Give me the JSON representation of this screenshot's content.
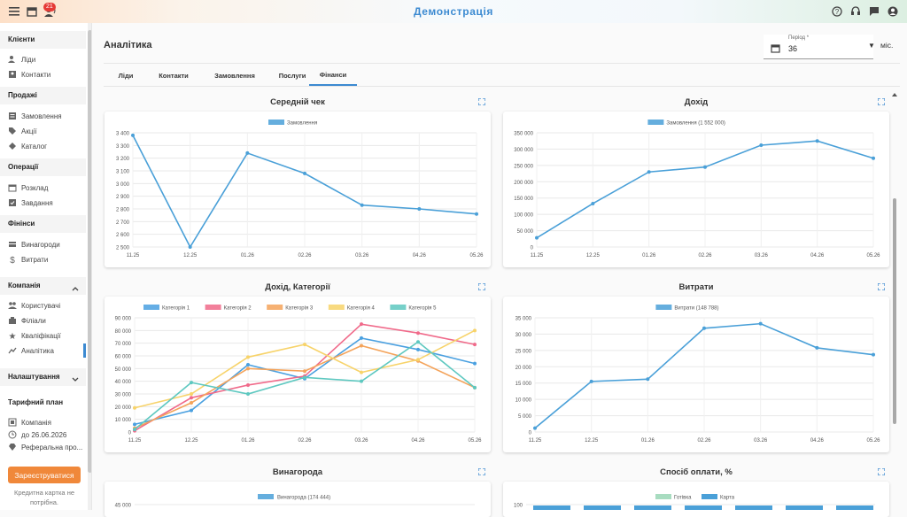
{
  "app": {
    "brand": "Демонстрація",
    "notifications_badge": "21"
  },
  "sidebar": {
    "sections": [
      {
        "title": "Клієнти",
        "items": [
          "Ліди",
          "Контакти"
        ]
      },
      {
        "title": "Продажі",
        "items": [
          "Замовлення",
          "Акції",
          "Каталог"
        ]
      },
      {
        "title": "Операції",
        "items": [
          "Розклад",
          "Завдання"
        ]
      },
      {
        "title": "Фінінси",
        "items": [
          "Винагороди",
          "Витрати"
        ]
      },
      {
        "title": "Компанія",
        "items": [
          "Користувачі",
          "Філіали",
          "Кваліфікації",
          "Аналітика"
        ]
      },
      {
        "title": "Налаштування",
        "items": []
      },
      {
        "title": "Тарифний план",
        "items": [
          "Компанія",
          "до 26.06.2026",
          "Реферальна про..."
        ]
      }
    ],
    "register_button": "Зареєструватися",
    "note": "Кредитна картка не потрібна."
  },
  "main": {
    "title": "Аналітика",
    "period": {
      "label": "Період *",
      "value": "36",
      "unit": "міс."
    },
    "tabs": [
      "Ліди",
      "Контакти",
      "Замовлення",
      "Послуги",
      "Фінанси"
    ],
    "active_tab": "Фінанси"
  },
  "panels": {
    "avg_check": "Середній чек",
    "income": "Дохід",
    "income_cat": "Дохід, Категорії",
    "expenses": "Витрати",
    "rewards": "Винагорода",
    "payment": "Спосіб оплати, %"
  },
  "chart_data": [
    {
      "type": "line",
      "title": "Середній чек",
      "x": [
        "11.25",
        "12.25",
        "01.26",
        "02.26",
        "03.26",
        "04.26",
        "05.26"
      ],
      "series": [
        {
          "name": "Замовлення",
          "values": [
            3380,
            2500,
            3240,
            3080,
            2830,
            2800,
            2760
          ]
        }
      ],
      "ylim": [
        2500,
        3400
      ],
      "yticks": [
        "2 500",
        "2 600",
        "2 700",
        "2 800",
        "2 900",
        "3 000",
        "3 100",
        "3 200",
        "3 300",
        "3 400"
      ],
      "color": "#4aa0d8"
    },
    {
      "type": "line",
      "title": "Дохід",
      "x": [
        "11.25",
        "12.25",
        "01.26",
        "02.26",
        "03.26",
        "04.26",
        "05.26"
      ],
      "series": [
        {
          "name": "Замовлення (1 552 000)",
          "values": [
            28000,
            133000,
            230000,
            245000,
            312000,
            325000,
            272000
          ]
        }
      ],
      "ylim": [
        0,
        350000
      ],
      "yticks": [
        "0",
        "50 000",
        "100 000",
        "150 000",
        "200 000",
        "250 000",
        "300 000",
        "350 000"
      ],
      "color": "#4aa0d8"
    },
    {
      "type": "line",
      "title": "Дохід, Категорії",
      "x": [
        "11.25",
        "12.25",
        "01.26",
        "02.26",
        "03.26",
        "04.26",
        "05.26"
      ],
      "series": [
        {
          "name": "Категорія 1",
          "values": [
            6000,
            17000,
            53000,
            42000,
            74000,
            65000,
            54000
          ],
          "color": "#4aa0e0"
        },
        {
          "name": "Категорія 2",
          "values": [
            1000,
            27000,
            37000,
            44000,
            85000,
            78000,
            69000
          ],
          "color": "#f06a8a"
        },
        {
          "name": "Категорія 3",
          "values": [
            3000,
            23000,
            50000,
            48000,
            68000,
            56000,
            35000
          ],
          "color": "#f4a35a"
        },
        {
          "name": "Категорія 4",
          "values": [
            19000,
            30000,
            59000,
            69000,
            47000,
            57000,
            80000
          ],
          "color": "#f7d36a"
        },
        {
          "name": "Категорія 5",
          "values": [
            2000,
            39000,
            30000,
            43000,
            40000,
            71000,
            35000
          ],
          "color": "#5ec8c0"
        }
      ],
      "ylim": [
        0,
        90000
      ],
      "yticks": [
        "0",
        "10 000",
        "20 000",
        "30 000",
        "40 000",
        "50 000",
        "60 000",
        "70 000",
        "80 000",
        "90 000"
      ]
    },
    {
      "type": "line",
      "title": "Витрати",
      "x": [
        "11.25",
        "12.25",
        "01.26",
        "02.26",
        "03.26",
        "04.26",
        "05.26"
      ],
      "series": [
        {
          "name": "Витрати (148 788)",
          "values": [
            1200,
            15500,
            16200,
            31800,
            33200,
            25800,
            23700
          ]
        }
      ],
      "ylim": [
        0,
        35000
      ],
      "yticks": [
        "0",
        "5 000",
        "10 000",
        "15 000",
        "20 000",
        "25 000",
        "30 000",
        "35 000"
      ],
      "color": "#4aa0d8"
    },
    {
      "type": "line",
      "title": "Винагорода",
      "series": [
        {
          "name": "Винагорода (174 444)",
          "values": []
        }
      ],
      "yticks": [
        "45 000"
      ],
      "color": "#4aa0d8"
    },
    {
      "type": "bar",
      "title": "Спосіб оплати, %",
      "series": [
        {
          "name": "Готівка",
          "color": "#a8dcc0"
        },
        {
          "name": "Карта",
          "color": "#4aa0d8"
        }
      ],
      "yticks": [
        "100"
      ]
    }
  ]
}
